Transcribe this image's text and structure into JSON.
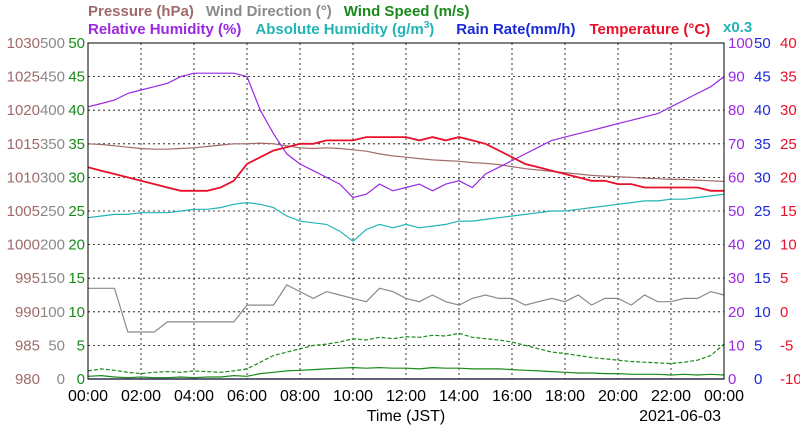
{
  "chart_data": {
    "type": "line",
    "date": "2021-06-03",
    "xlabel": "Time (JST)",
    "x_ticks": [
      "00:00",
      "02:00",
      "04:00",
      "06:00",
      "08:00",
      "10:00",
      "12:00",
      "14:00",
      "16:00",
      "18:00",
      "20:00",
      "22:00",
      "00:00"
    ],
    "grid": true,
    "legend_row1": [
      {
        "key": "pressure",
        "label": "Pressure (hPa)",
        "color": "#a06a6a"
      },
      {
        "key": "wind_direction",
        "label": "Wind Direction (°)",
        "color": "#8a8a8a"
      },
      {
        "key": "wind_speed",
        "label": "Wind Speed (m/s)",
        "color": "#1a8a1a"
      }
    ],
    "legend_row2": [
      {
        "key": "relative_humidity",
        "label": "Relative Humidity (%)",
        "color": "#9a28e0"
      },
      {
        "key": "absolute_humidity",
        "label": "Absolute Humidity (g/m",
        "sup": "3",
        "tail": ")",
        "color": "#22b4b4"
      },
      {
        "key": "rain_rate",
        "label": "Rain Rate(mm/h)",
        "color": "#1a2ad8"
      },
      {
        "key": "temperature",
        "label": "Temperature (°C)",
        "color": "#e8102a"
      }
    ],
    "multiplier_label": "x0.3",
    "axes": {
      "pressure": {
        "color": "#a06a6a",
        "ticks": [
          "1030",
          "1025",
          "1020",
          "1015",
          "1010",
          "1005",
          "1000",
          "995",
          "990",
          "985",
          "980"
        ],
        "ylim": [
          980,
          1030
        ]
      },
      "wind_direction": {
        "color": "#8a8a8a",
        "ticks": [
          "500",
          "450",
          "400",
          "350",
          "300",
          "250",
          "200",
          "150",
          "100",
          "50",
          "0"
        ],
        "ylim": [
          0,
          500
        ]
      },
      "wind_speed": {
        "color": "#1a8a1a",
        "ticks": [
          "50",
          "45",
          "40",
          "35",
          "30",
          "25",
          "20",
          "15",
          "10",
          "5",
          "0"
        ],
        "ylim": [
          0,
          50
        ]
      },
      "relative_humidity": {
        "color": "#9a28e0",
        "ticks": [
          "100",
          "90",
          "80",
          "70",
          "60",
          "50",
          "40",
          "30",
          "20",
          "10",
          "0"
        ],
        "ylim": [
          0,
          100
        ]
      },
      "rain_rate": {
        "color": "#1a2ad8",
        "ticks": [
          "50",
          "45",
          "40",
          "35",
          "30",
          "25",
          "20",
          "15",
          "10",
          "5",
          "0"
        ],
        "ylim": [
          0,
          50
        ]
      },
      "temperature": {
        "color": "#e8102a",
        "ticks": [
          "40",
          "35",
          "30",
          "25",
          "20",
          "15",
          "10",
          "5",
          "0",
          "-5",
          "-10"
        ],
        "ylim": [
          -10,
          40
        ]
      }
    },
    "x_hours": [
      0,
      0.5,
      1,
      1.5,
      2,
      2.5,
      3,
      3.5,
      4,
      4.5,
      5,
      5.5,
      6,
      6.5,
      7,
      7.5,
      8,
      8.5,
      9,
      9.5,
      10,
      10.5,
      11,
      11.5,
      12,
      12.5,
      13,
      13.5,
      14,
      14.5,
      15,
      15.5,
      16,
      16.5,
      17,
      17.5,
      18,
      18.5,
      19,
      19.5,
      20,
      20.5,
      21,
      21.5,
      22,
      22.5,
      23,
      23.5,
      24
    ],
    "series": [
      {
        "key": "pressure",
        "color": "#a06a6a",
        "axis": "pressure",
        "values": [
          1015,
          1014.9,
          1014.7,
          1014.5,
          1014.3,
          1014.2,
          1014.2,
          1014.3,
          1014.4,
          1014.6,
          1014.8,
          1015,
          1015,
          1015.1,
          1015,
          1014.7,
          1014.4,
          1014.3,
          1014.4,
          1014.3,
          1014.1,
          1013.9,
          1013.5,
          1013.2,
          1013,
          1012.8,
          1012.6,
          1012.5,
          1012.4,
          1012.2,
          1012.1,
          1011.9,
          1011.6,
          1011.3,
          1011.1,
          1010.9,
          1010.7,
          1010.5,
          1010.3,
          1010.2,
          1010.1,
          1010,
          1009.9,
          1009.8,
          1009.7,
          1009.7,
          1009.6,
          1009.5,
          1009.4
        ]
      },
      {
        "key": "wind_direction",
        "color": "#8a8a8a",
        "axis": "wind_direction",
        "values": [
          135,
          135,
          135,
          70,
          70,
          70,
          85,
          85,
          85,
          85,
          85,
          85,
          110,
          110,
          110,
          140,
          130,
          120,
          130,
          125,
          120,
          115,
          135,
          130,
          120,
          115,
          125,
          115,
          110,
          120,
          125,
          120,
          120,
          110,
          115,
          120,
          115,
          125,
          110,
          120,
          120,
          110,
          125,
          115,
          115,
          120,
          120,
          130,
          125
        ]
      },
      {
        "key": "wind_speed",
        "color": "#1a8a1a",
        "axis": "wind_speed",
        "values": [
          0.4,
          0.5,
          0.3,
          0.2,
          0.3,
          0.2,
          0.2,
          0.3,
          0.2,
          0.3,
          0.3,
          0.5,
          0.4,
          0.8,
          1,
          1.2,
          1.3,
          1.4,
          1.5,
          1.6,
          1.7,
          1.6,
          1.7,
          1.6,
          1.6,
          1.5,
          1.7,
          1.6,
          1.6,
          1.5,
          1.5,
          1.5,
          1.4,
          1.3,
          1.2,
          1.1,
          1,
          0.9,
          0.9,
          0.8,
          0.8,
          0.7,
          0.7,
          0.7,
          0.6,
          0.7,
          0.6,
          0.7,
          0.6
        ]
      },
      {
        "key": "wind_gust",
        "color": "#1a8a1a",
        "axis": "wind_speed",
        "dashed": true,
        "values": [
          1.2,
          1.5,
          1.3,
          1,
          0.8,
          1,
          1.1,
          1,
          1.2,
          1.1,
          1,
          1.2,
          1.5,
          2.5,
          3.5,
          4,
          4.5,
          5,
          5.2,
          5.5,
          6,
          5.8,
          6.2,
          6,
          6.3,
          6.2,
          6.5,
          6.4,
          6.8,
          6.2,
          6,
          5.8,
          5.5,
          5,
          4.5,
          4,
          3.8,
          3.5,
          3.2,
          3,
          2.8,
          2.6,
          2.5,
          2.4,
          2.3,
          2.5,
          2.8,
          3.5,
          5.2
        ]
      },
      {
        "key": "relative_humidity",
        "color": "#9a28e0",
        "axis": "relative_humidity",
        "values": [
          81,
          82,
          83,
          85,
          86,
          87,
          88,
          90,
          91,
          91,
          91,
          91,
          90,
          80,
          73,
          67,
          64,
          62,
          60,
          58,
          54,
          55,
          58,
          56,
          57,
          58,
          56,
          58,
          59,
          57,
          61,
          63,
          65,
          67,
          69,
          71,
          72,
          73,
          74,
          75,
          76,
          77,
          78,
          79,
          81,
          83,
          85,
          87,
          90
        ]
      },
      {
        "key": "absolute_humidity",
        "color": "#22b4b4",
        "axis": "relative_humidity",
        "values": [
          48,
          48.5,
          49,
          49,
          49.5,
          49.5,
          49.5,
          50,
          50.5,
          50.5,
          51,
          52,
          52.5,
          52,
          51,
          48.5,
          47,
          46.5,
          46,
          44,
          41,
          44.5,
          46,
          45,
          46,
          45,
          45.5,
          46,
          47,
          47,
          47.5,
          48,
          48.5,
          49,
          49.5,
          50,
          50,
          50.5,
          51,
          51.5,
          52,
          52.5,
          53,
          53,
          53.5,
          53.5,
          54,
          54.5,
          55
        ]
      },
      {
        "key": "temperature",
        "color": "#e8102a",
        "axis": "temperature",
        "values": [
          21.5,
          21,
          20.5,
          20,
          19.5,
          19,
          18.5,
          18,
          18,
          18,
          18.5,
          19.5,
          22,
          23,
          24,
          24.5,
          25,
          25,
          25.5,
          25.5,
          25.5,
          26,
          26,
          26,
          26,
          25.5,
          26,
          25.5,
          26,
          25.5,
          25,
          24,
          23,
          22,
          21.5,
          21,
          20.5,
          20,
          19.5,
          19.5,
          19,
          19,
          18.5,
          18.5,
          18.5,
          18.5,
          18.5,
          18,
          18
        ]
      },
      {
        "key": "rain_rate",
        "color": "#1a2ad8",
        "axis": "rain_rate",
        "values": [
          0,
          0,
          0,
          0,
          0,
          0,
          0,
          0,
          0,
          0,
          0,
          0,
          0,
          0,
          0,
          0,
          0,
          0,
          0,
          0,
          0,
          0,
          0,
          0,
          0,
          0,
          0,
          0,
          0,
          0,
          0,
          0,
          0,
          0,
          0,
          0,
          0,
          0,
          0,
          0,
          0,
          0,
          0,
          0,
          0,
          0,
          0,
          0,
          0
        ]
      }
    ]
  }
}
